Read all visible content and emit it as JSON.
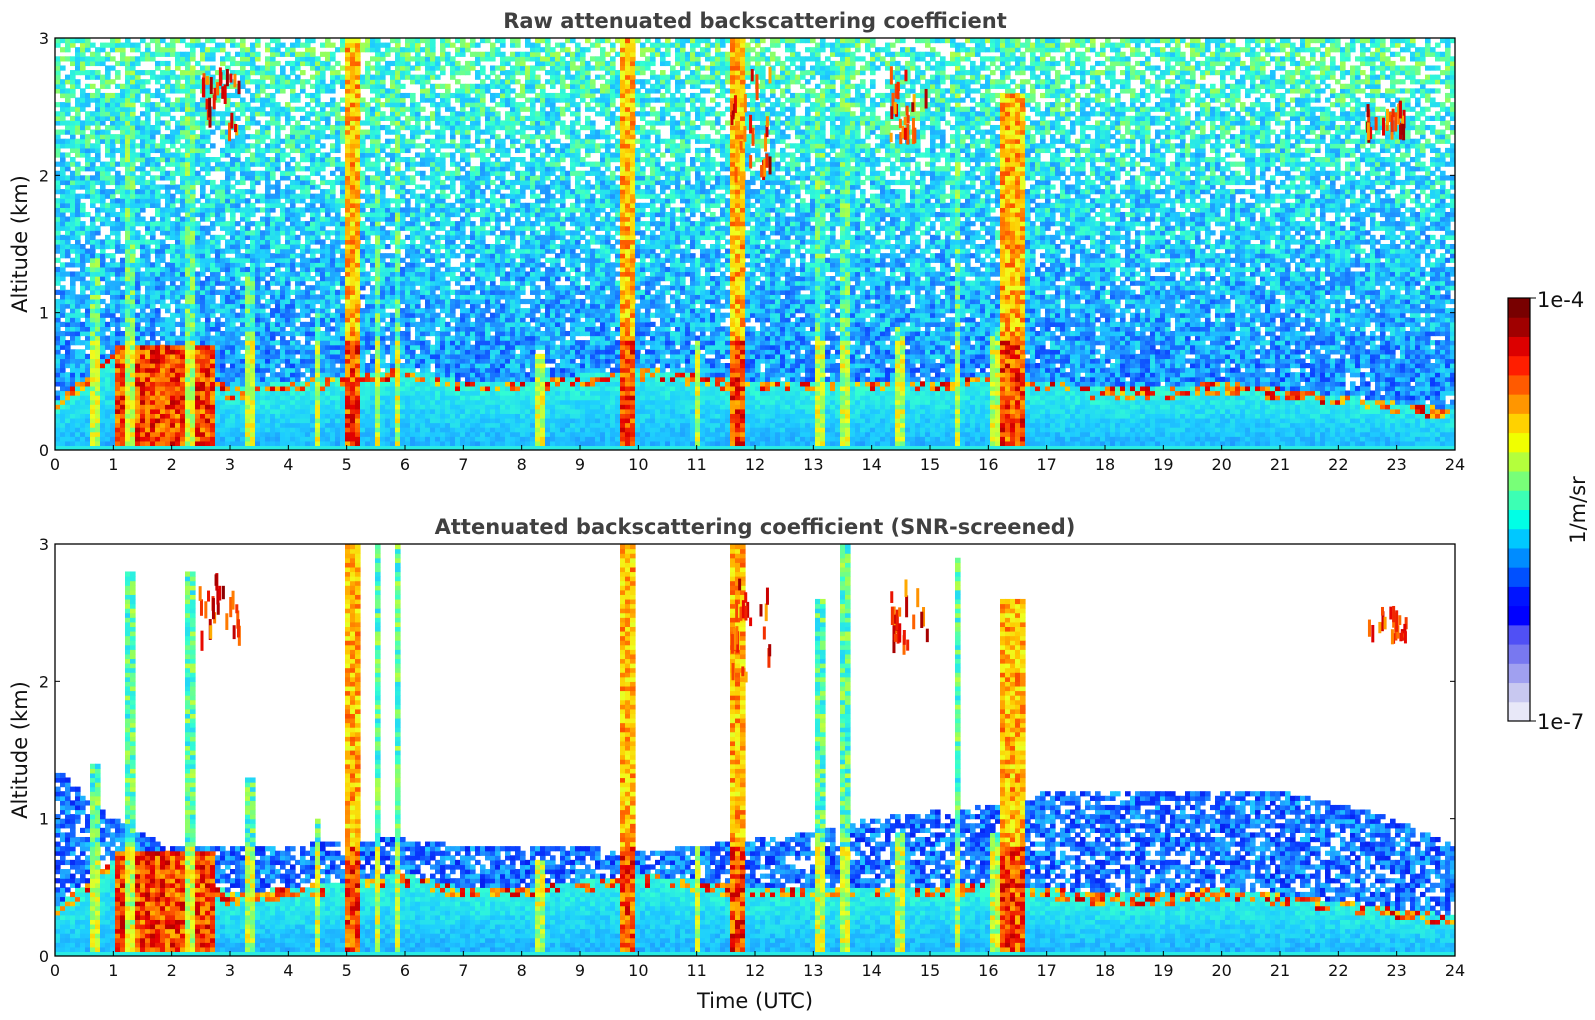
{
  "figure": {
    "colormap": [
      "#08006e",
      "#0000e0",
      "#0a3cff",
      "#1e8cff",
      "#1ecdff",
      "#32ffd2",
      "#96ff5a",
      "#f0ff1e",
      "#ffc800",
      "#ff6400",
      "#e60000",
      "#8c0000"
    ],
    "low_fill": "#ffffff"
  },
  "colorbar": {
    "label": "1/m/sr",
    "max_label": "1e-4",
    "min_label": "1e-7",
    "scale": "log",
    "range": [
      1e-07,
      0.0001
    ],
    "colors": [
      "#e8e8f8",
      "#c8c8f0",
      "#a0a0f0",
      "#7878f0",
      "#5050f5",
      "#0000ff",
      "#0014ff",
      "#0050ff",
      "#008cff",
      "#00c8ff",
      "#00ffe6",
      "#3cffb4",
      "#78ff78",
      "#b4ff3c",
      "#f0ff00",
      "#ffd200",
      "#ff9600",
      "#ff5a00",
      "#ff1e00",
      "#dc0000",
      "#a00000",
      "#780000"
    ]
  },
  "chart_data": [
    {
      "type": "heatmap",
      "title": "Raw attenuated backscattering coefficient",
      "xlabel": "",
      "ylabel": "Altitude (km)",
      "xlim": [
        0,
        24
      ],
      "ylim": [
        0,
        3
      ],
      "xticks": [
        "0",
        "1",
        "2",
        "3",
        "4",
        "5",
        "6",
        "7",
        "8",
        "9",
        "10",
        "11",
        "12",
        "13",
        "14",
        "15",
        "16",
        "17",
        "18",
        "19",
        "20",
        "21",
        "22",
        "23",
        "24"
      ],
      "yticks": [
        "0",
        "1",
        "2",
        "3"
      ],
      "boundary_layer_top_km": [
        0.35,
        0.7,
        0.75,
        0.45,
        0.5,
        0.55,
        0.6,
        0.5,
        0.5,
        0.55,
        0.6,
        0.55,
        0.5,
        0.5,
        0.5,
        0.5,
        0.55,
        0.5,
        0.45,
        0.45,
        0.5,
        0.45,
        0.4,
        0.35,
        0.3
      ],
      "dense_plumes_utc": [
        {
          "t": [
            1.0,
            2.7
          ],
          "top_km": 0.75
        },
        {
          "t": [
            16.2,
            16.6
          ],
          "top_km": 2.6
        },
        {
          "t": [
            11.6,
            11.8
          ],
          "top_km": 3.0
        },
        {
          "t": [
            5.0,
            5.2
          ],
          "top_km": 3.0
        },
        {
          "t": [
            9.7,
            9.9
          ],
          "top_km": 3.0
        }
      ],
      "cloud_patches": [
        {
          "t": 2.8,
          "z": [
            2.35,
            2.8
          ]
        },
        {
          "t": 11.9,
          "z": [
            2.0,
            2.8
          ]
        },
        {
          "t": 14.6,
          "z": [
            2.3,
            2.8
          ]
        },
        {
          "t": 22.8,
          "z": [
            2.35,
            2.55
          ]
        }
      ]
    },
    {
      "type": "heatmap",
      "title": "Attenuated backscattering coefficient (SNR-screened)",
      "xlabel": "Time (UTC)",
      "ylabel": "Altitude (km)",
      "xlim": [
        0,
        24
      ],
      "ylim": [
        0,
        3
      ],
      "xticks": [
        "0",
        "1",
        "2",
        "3",
        "4",
        "5",
        "6",
        "7",
        "8",
        "9",
        "10",
        "11",
        "12",
        "13",
        "14",
        "15",
        "16",
        "17",
        "18",
        "19",
        "20",
        "21",
        "22",
        "23",
        "24"
      ],
      "yticks": [
        "0",
        "1",
        "2",
        "3"
      ],
      "screened_noise_ceiling_km": [
        1.4,
        1.0,
        0.8,
        0.8,
        0.8,
        0.85,
        0.85,
        0.8,
        0.8,
        0.8,
        0.75,
        0.8,
        0.85,
        0.9,
        1.0,
        1.05,
        1.1,
        1.2,
        1.2,
        1.2,
        1.2,
        1.2,
        1.1,
        1.0,
        0.8
      ]
    }
  ]
}
